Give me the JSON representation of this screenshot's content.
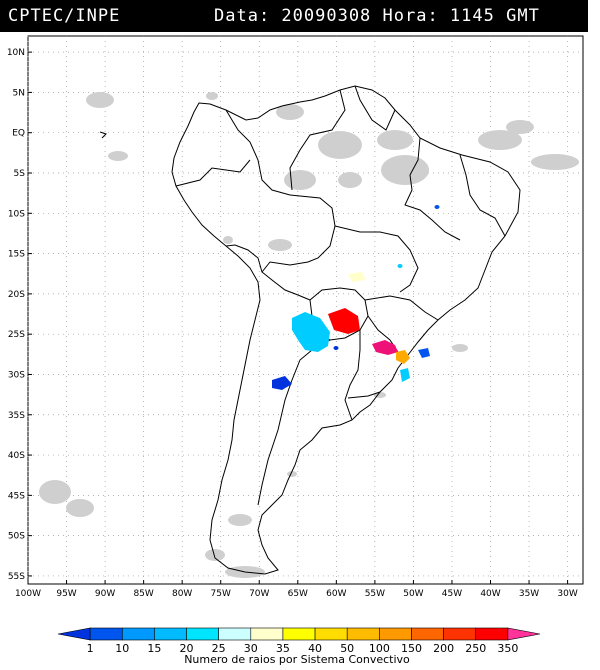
{
  "header": {
    "agency": "CPTEC/INPE",
    "date_time": "Data: 20090308 Hora: 1145 GMT"
  },
  "map": {
    "lat_labels": [
      "10N",
      "5N",
      "EQ",
      "5S",
      "10S",
      "15S",
      "20S",
      "25S",
      "30S",
      "35S",
      "40S",
      "45S",
      "50S",
      "55S"
    ],
    "lon_labels": [
      "100W",
      "95W",
      "90W",
      "85W",
      "80W",
      "75W",
      "70W",
      "65W",
      "60W",
      "55W",
      "50W",
      "45W",
      "40W",
      "35W",
      "30W"
    ],
    "lat_range": [
      -56,
      12
    ],
    "lon_range": [
      -100,
      -28
    ],
    "grid": "dotted"
  },
  "colorbar": {
    "ticks": [
      "1",
      "10",
      "15",
      "20",
      "25",
      "30",
      "35",
      "40",
      "50",
      "100",
      "150",
      "200",
      "250",
      "350"
    ],
    "colors": [
      "#0033dd",
      "#0055ee",
      "#0099ff",
      "#00bbff",
      "#00e5ff",
      "#ccffff",
      "#ffffcc",
      "#ffff00",
      "#ffdd00",
      "#ffbb00",
      "#ff9900",
      "#ff6600",
      "#ff3300",
      "#ff0000",
      "#ff3399"
    ],
    "label": "Numero de raios por Sistema Convectivo"
  }
}
